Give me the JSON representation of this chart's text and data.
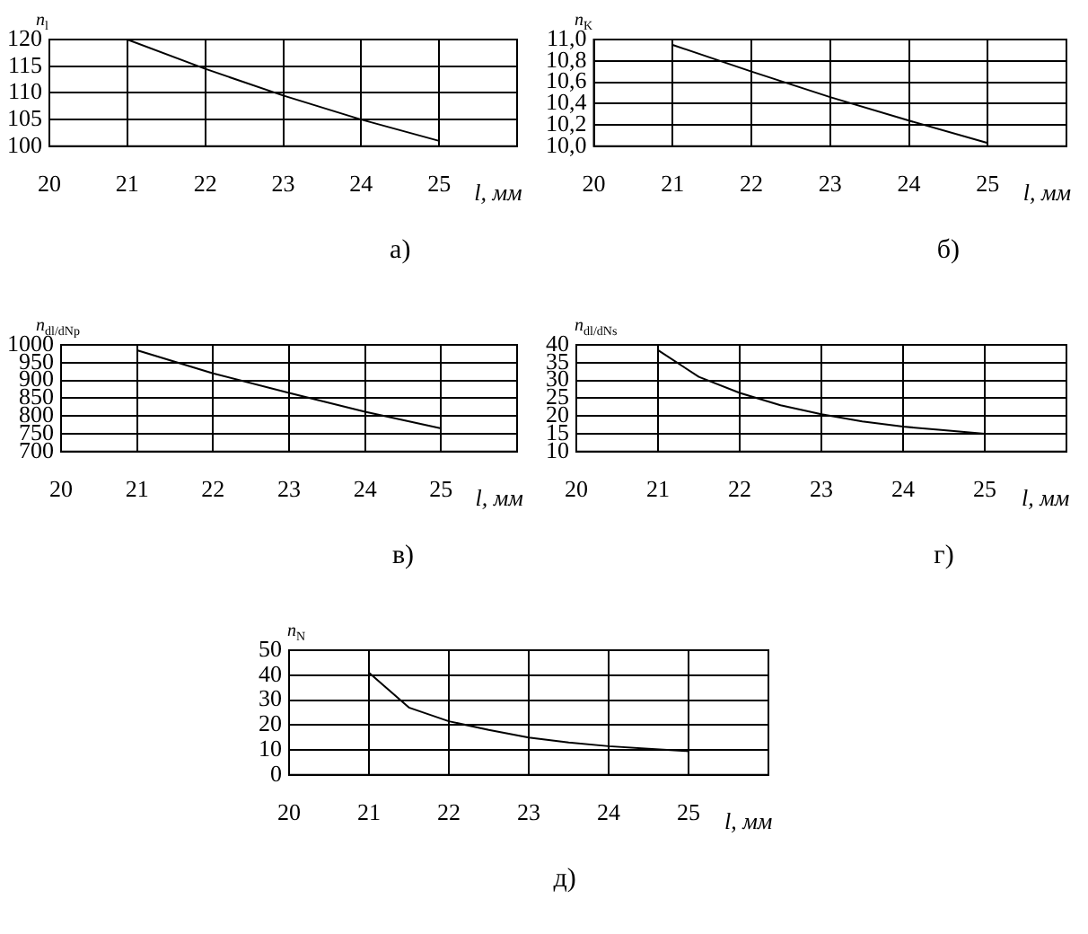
{
  "chart_data": [
    {
      "type": "line",
      "title": "а)",
      "xlabel": "l, мм",
      "ylabel": "n$_{l}$",
      "x": [
        21,
        22,
        23,
        24,
        25
      ],
      "values": [
        120,
        114.5,
        109.5,
        105,
        101
      ],
      "color": "#000000",
      "xlim": [
        20,
        26
      ],
      "xticks": [
        20,
        21,
        22,
        23,
        24,
        25
      ],
      "ylim": [
        100,
        120
      ],
      "yticks": [
        100,
        105,
        110,
        115,
        120
      ],
      "grid": true,
      "marker": "none",
      "line_style": "solid",
      "legend": false
    },
    {
      "type": "line",
      "title": "б)",
      "xlabel": "l, мм",
      "ylabel": "n$_{K}$",
      "x": [
        21,
        22,
        23,
        24,
        25
      ],
      "values": [
        10.95,
        10.7,
        10.46,
        10.24,
        10.03
      ],
      "color": "#000000",
      "xlim": [
        20,
        26
      ],
      "xticks": [
        20,
        21,
        22,
        23,
        24,
        25
      ],
      "ylim": [
        10,
        11
      ],
      "yticks": [
        {
          "value": 10,
          "label": "10,0"
        },
        {
          "value": 10.2,
          "label": "10,2"
        },
        {
          "value": 10.4,
          "label": "10,4"
        },
        {
          "value": 10.6,
          "label": "10,6"
        },
        {
          "value": 10.8,
          "label": "10,8"
        },
        {
          "value": 11,
          "label": "11,0"
        }
      ],
      "grid": true,
      "marker": "none",
      "line_style": "solid",
      "legend": false
    },
    {
      "type": "line",
      "title": "в)",
      "xlabel": "l, мм",
      "ylabel": "n$_{dl/dNp}$",
      "x": [
        21,
        22,
        23,
        24,
        25
      ],
      "values": [
        985,
        920,
        865,
        812,
        765
      ],
      "color": "#000000",
      "xlim": [
        20,
        26
      ],
      "xticks": [
        20,
        21,
        22,
        23,
        24,
        25
      ],
      "ylim": [
        700,
        1000
      ],
      "yticks": [
        700,
        750,
        800,
        850,
        900,
        950,
        1000
      ],
      "grid": true,
      "marker": "none",
      "line_style": "solid",
      "legend": false
    },
    {
      "type": "line",
      "title": "г)",
      "xlabel": "l, мм",
      "ylabel": "n$_{dl/dNs}$",
      "x": [
        21,
        21.5,
        22,
        22.5,
        23,
        23.5,
        24,
        24.5,
        25
      ],
      "values": [
        38.5,
        31,
        26.5,
        23,
        20.5,
        18.5,
        17,
        16,
        15
      ],
      "color": "#000000",
      "xlim": [
        20,
        26
      ],
      "xticks": [
        20,
        21,
        22,
        23,
        24,
        25
      ],
      "ylim": [
        10,
        40
      ],
      "yticks": [
        10,
        15,
        20,
        25,
        30,
        35,
        40
      ],
      "grid": true,
      "marker": "none",
      "line_style": "solid",
      "legend": false
    },
    {
      "type": "line",
      "title": "д)",
      "xlabel": "l, мм",
      "ylabel": "n$_{N}$",
      "x": [
        21,
        21.5,
        22,
        22.5,
        23,
        23.5,
        24,
        24.5,
        25
      ],
      "values": [
        41,
        27,
        21.5,
        18,
        15,
        13,
        11.5,
        10.5,
        9.5
      ],
      "color": "#000000",
      "xlim": [
        20,
        26
      ],
      "xticks": [
        20,
        21,
        22,
        23,
        24,
        25
      ],
      "ylim": [
        0,
        50
      ],
      "yticks": [
        0,
        10,
        20,
        30,
        40,
        50
      ],
      "grid": true,
      "marker": "none",
      "line_style": "solid",
      "legend": false
    }
  ]
}
